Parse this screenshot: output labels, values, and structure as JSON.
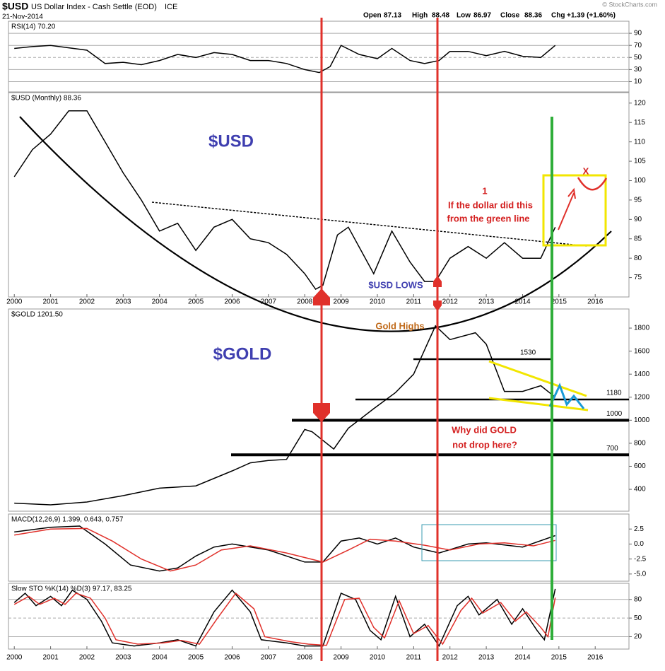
{
  "header": {
    "symbol": "$USD",
    "name": "US Dollar Index - Cash Settle (EOD)",
    "exchange": "ICE",
    "date": "21-Nov-2014",
    "open_label": "Open",
    "open": 87.13,
    "high_label": "High",
    "high": 88.48,
    "low_label": "Low",
    "low": 86.97,
    "close_label": "Close",
    "close": 88.36,
    "chg_label": "Chg",
    "chg": "+1.39 (+1.60%)",
    "watermark": "© StockCharts.com"
  },
  "annotations": {
    "usd": "$USD",
    "gold": "$GOLD",
    "usd_lows": "$USD LOWS",
    "gold_highs": "Gold Highs",
    "one": "1",
    "dollar_1": "If the dollar did this",
    "dollar_2": "from the green line",
    "x_mark": "X",
    "why_1": "Why did GOLD",
    "why_2": "not drop here?"
  },
  "chart_data": [
    {
      "type": "line",
      "title": "RSI(14) 70.20",
      "xlim": [
        1999.84,
        2016.93
      ],
      "ylim": [
        -7,
        110
      ],
      "yticks": [
        90,
        70,
        50,
        30,
        10
      ],
      "grid": true,
      "series": [
        {
          "color": "#000000",
          "x": [
            2000,
            2000.5,
            2001,
            2001.5,
            2002,
            2002.5,
            2003,
            2003.5,
            2004,
            2004.5,
            2005,
            2005.5,
            2006,
            2006.5,
            2007,
            2007.5,
            2008,
            2008.4,
            2008.7,
            2009,
            2009.5,
            2010,
            2010.4,
            2010.9,
            2011.3,
            2011.7,
            2012,
            2012.5,
            2013,
            2013.5,
            2014,
            2014.5,
            2014.9
          ],
          "values": [
            65,
            68,
            70,
            66,
            62,
            40,
            42,
            38,
            45,
            55,
            50,
            58,
            55,
            45,
            45,
            40,
            30,
            25,
            35,
            70,
            55,
            48,
            65,
            45,
            40,
            45,
            60,
            60,
            53,
            60,
            52,
            50,
            70
          ]
        }
      ]
    },
    {
      "type": "line",
      "title": "$USD (Monthly) 88.36",
      "xlim": [
        1999.84,
        2016.93
      ],
      "ylim": [
        70,
        122.7
      ],
      "yticks": [
        120,
        115,
        110,
        105,
        100,
        95,
        90,
        85,
        80,
        75
      ],
      "grid": false,
      "xticks": [
        2000,
        2001,
        2002,
        2003,
        2004,
        2005,
        2006,
        2007,
        2008,
        2009,
        2010,
        2011,
        2012,
        2013,
        2014,
        2015,
        2016
      ],
      "series": [
        {
          "color": "#000000",
          "x": [
            2000,
            2000.5,
            2001,
            2001.5,
            2002,
            2002.5,
            2003,
            2003.5,
            2004,
            2004.5,
            2005,
            2005.5,
            2006,
            2006.5,
            2007,
            2007.5,
            2008,
            2008.3,
            2008.5,
            2008.9,
            2009.2,
            2009.9,
            2010.4,
            2010.9,
            2011.3,
            2011.6,
            2012,
            2012.5,
            2013,
            2013.5,
            2014,
            2014.5,
            2014.9
          ],
          "values": [
            101,
            108,
            112,
            118,
            118,
            110,
            102,
            95,
            87,
            89,
            82,
            88,
            90,
            85,
            84,
            81,
            76,
            72,
            73,
            86,
            88,
            76,
            87,
            79,
            74,
            74,
            80,
            83,
            80,
            84,
            80,
            80,
            88
          ]
        }
      ]
    },
    {
      "type": "line",
      "title": "$GOLD 1201.50",
      "xlim": [
        1999.84,
        2016.93
      ],
      "ylim": [
        210,
        1966
      ],
      "yticks": [
        1800,
        1600,
        1400,
        1200,
        1000,
        800,
        600,
        400
      ],
      "grid": false,
      "levels": [
        {
          "value": 1530,
          "label": "1530"
        },
        {
          "value": 1180,
          "label": "1180"
        },
        {
          "value": 1000,
          "label": "1000"
        },
        {
          "value": 700,
          "label": "700"
        }
      ],
      "series": [
        {
          "color": "#000000",
          "x": [
            2000,
            2001,
            2002,
            2003,
            2004,
            2005,
            2006,
            2006.5,
            2007,
            2007.5,
            2008,
            2008.2,
            2008.8,
            2009.2,
            2009.9,
            2010.5,
            2011,
            2011.6,
            2012,
            2012.7,
            2013,
            2013.5,
            2014,
            2014.5,
            2014.9
          ],
          "values": [
            280,
            265,
            290,
            345,
            410,
            430,
            560,
            630,
            650,
            660,
            920,
            900,
            750,
            930,
            1100,
            1240,
            1400,
            1820,
            1700,
            1760,
            1660,
            1250,
            1250,
            1300,
            1200
          ]
        }
      ]
    },
    {
      "type": "line",
      "title": "MACD(12,26,9) 1.399, 0.643, 0.757",
      "xlim": [
        1999.84,
        2016.93
      ],
      "ylim": [
        -6.2,
        5
      ],
      "yticks": [
        2.5,
        {
          "value": 0,
          "label": "0.0"
        },
        -2.5,
        {
          "value": -5,
          "label": "-5.0"
        }
      ],
      "grid": false,
      "series": [
        {
          "color": "#000000",
          "x": [
            2000,
            2001,
            2001.8,
            2002.5,
            2003.2,
            2004,
            2004.5,
            2005,
            2005.5,
            2006,
            2007,
            2008,
            2008.5,
            2009,
            2009.5,
            2010,
            2010.5,
            2011,
            2011.7,
            2012.5,
            2013,
            2014,
            2014.9
          ],
          "values": [
            2,
            2.8,
            3,
            0,
            -3.5,
            -4.5,
            -4,
            -2,
            -0.5,
            0,
            -1,
            -3,
            -3,
            0.5,
            1,
            0,
            1,
            -0.5,
            -1.5,
            0,
            0.2,
            -0.5,
            1.4
          ]
        },
        {
          "color": "#e0302a",
          "x": [
            2000,
            2001,
            2002,
            2002.7,
            2003.5,
            2004.3,
            2005,
            2005.7,
            2006.5,
            2007.5,
            2008.5,
            2009.2,
            2009.8,
            2010.5,
            2011.3,
            2012,
            2012.8,
            2013.5,
            2014.3,
            2014.9
          ],
          "values": [
            1.5,
            2.5,
            2.6,
            0.5,
            -2.5,
            -4.5,
            -3.5,
            -1,
            -0.3,
            -1.5,
            -3,
            -1,
            0.8,
            0.5,
            -0.2,
            -1,
            0,
            0.2,
            -0.3,
            0.6
          ]
        }
      ]
    },
    {
      "type": "line",
      "title": "Slow STO %K(14) %D(3) 97.17, 83.25",
      "xlim": [
        1999.84,
        2016.93
      ],
      "ylim": [
        0,
        106
      ],
      "yticks": [
        80,
        50,
        20
      ],
      "grid": true,
      "xticks": [
        2000,
        2001,
        2002,
        2003,
        2004,
        2005,
        2006,
        2007,
        2008,
        2009,
        2010,
        2011,
        2012,
        2013,
        2014,
        2015,
        2016
      ],
      "series": [
        {
          "color": "#000000",
          "x": [
            2000,
            2000.3,
            2000.6,
            2001,
            2001.3,
            2001.6,
            2002,
            2002.4,
            2002.7,
            2003.3,
            2004,
            2004.5,
            2005,
            2005.5,
            2006,
            2006.5,
            2006.8,
            2007.5,
            2008,
            2008.5,
            2009,
            2009.4,
            2009.8,
            2010.1,
            2010.5,
            2010.9,
            2011.3,
            2011.7,
            2012.2,
            2012.5,
            2012.8,
            2013.3,
            2013.7,
            2014,
            2014.4,
            2014.6,
            2014.9
          ],
          "values": [
            75,
            90,
            70,
            85,
            70,
            95,
            80,
            45,
            10,
            5,
            10,
            15,
            5,
            60,
            95,
            60,
            15,
            10,
            5,
            5,
            90,
            80,
            30,
            15,
            85,
            20,
            40,
            5,
            70,
            85,
            55,
            80,
            40,
            65,
            30,
            15,
            97
          ]
        },
        {
          "color": "#e0302a",
          "x": [
            2000,
            2000.4,
            2000.7,
            2001.1,
            2001.4,
            2001.7,
            2002.1,
            2002.5,
            2002.8,
            2003.4,
            2004.1,
            2004.6,
            2005.1,
            2005.6,
            2006.1,
            2006.6,
            2006.9,
            2007.6,
            2008.1,
            2008.6,
            2009.1,
            2009.5,
            2009.9,
            2010.2,
            2010.6,
            2011,
            2011.4,
            2011.8,
            2012.3,
            2012.6,
            2012.9,
            2013.4,
            2013.8,
            2014.1,
            2014.5,
            2014.7,
            2014.9
          ],
          "values": [
            72,
            85,
            72,
            82,
            72,
            90,
            82,
            50,
            15,
            8,
            10,
            14,
            8,
            50,
            90,
            65,
            20,
            12,
            8,
            6,
            80,
            82,
            35,
            18,
            78,
            25,
            38,
            8,
            62,
            82,
            58,
            75,
            45,
            60,
            35,
            20,
            83
          ]
        }
      ]
    }
  ]
}
